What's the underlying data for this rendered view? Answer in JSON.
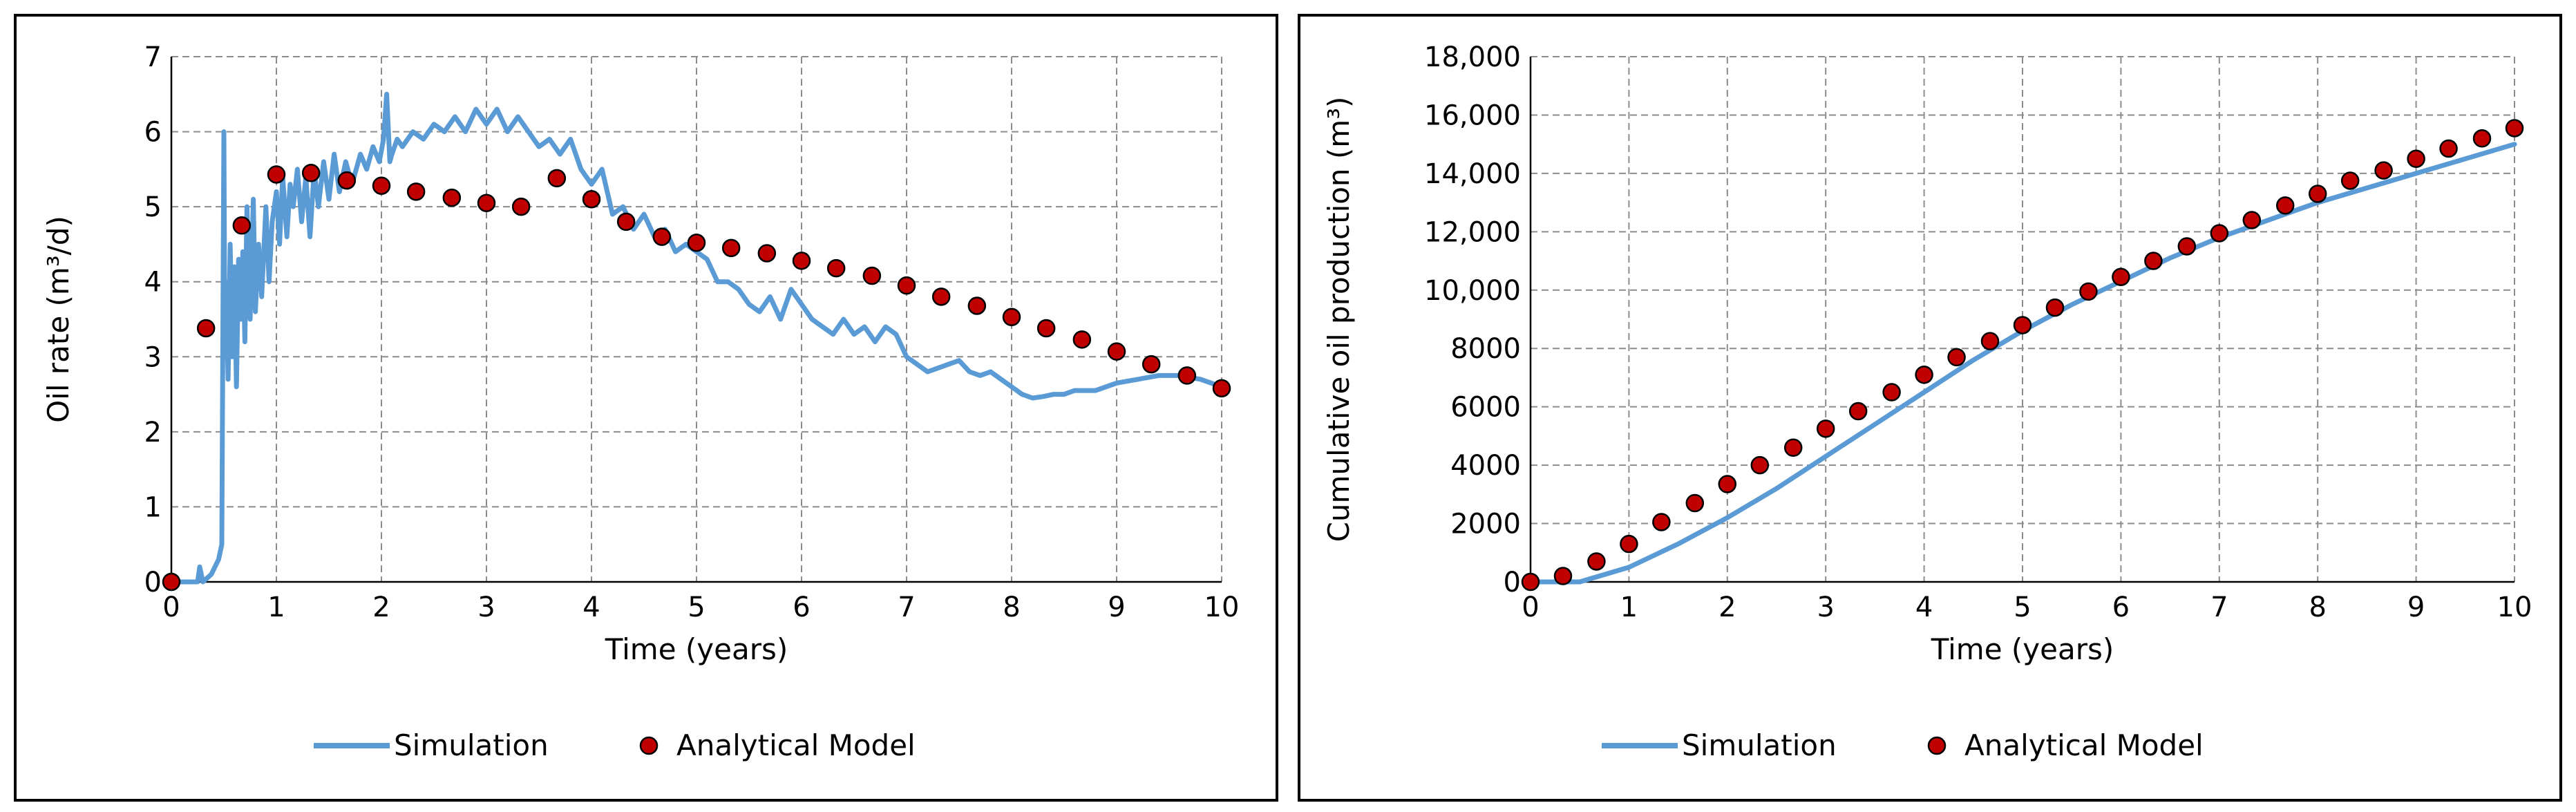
{
  "chart_data": [
    {
      "type": "line",
      "xlabel": "Time (years)",
      "ylabel": "Oil rate (m³/d)",
      "xlim": [
        0,
        10
      ],
      "ylim": [
        0,
        7
      ],
      "x_ticks": [
        "0",
        "1",
        "2",
        "3",
        "4",
        "5",
        "6",
        "7",
        "8",
        "9",
        "10"
      ],
      "y_ticks": [
        "0",
        "1",
        "2",
        "3",
        "4",
        "5",
        "6",
        "7"
      ],
      "grid": true,
      "legend_position": "bottom",
      "colors": {
        "simulation": "#5B9BD5",
        "analytical": "#C00000"
      },
      "series": [
        {
          "name": "Simulation",
          "style": "line",
          "x": [
            0,
            0.25,
            0.27,
            0.3,
            0.38,
            0.45,
            0.48,
            0.5,
            0.51,
            0.52,
            0.54,
            0.56,
            0.58,
            0.6,
            0.62,
            0.64,
            0.66,
            0.68,
            0.7,
            0.72,
            0.75,
            0.78,
            0.8,
            0.83,
            0.86,
            0.9,
            0.93,
            0.96,
            1.0,
            1.03,
            1.06,
            1.1,
            1.13,
            1.16,
            1.2,
            1.24,
            1.28,
            1.32,
            1.36,
            1.4,
            1.45,
            1.5,
            1.55,
            1.6,
            1.66,
            1.72,
            1.8,
            1.86,
            1.92,
            1.98,
            2.02,
            2.05,
            2.08,
            2.1,
            2.15,
            2.2,
            2.3,
            2.4,
            2.5,
            2.6,
            2.7,
            2.8,
            2.9,
            3.0,
            3.1,
            3.2,
            3.3,
            3.4,
            3.5,
            3.6,
            3.7,
            3.8,
            3.9,
            4.0,
            4.1,
            4.2,
            4.3,
            4.4,
            4.5,
            4.6,
            4.7,
            4.8,
            4.9,
            5.0,
            5.1,
            5.2,
            5.3,
            5.4,
            5.5,
            5.6,
            5.7,
            5.8,
            5.9,
            6.0,
            6.1,
            6.2,
            6.3,
            6.4,
            6.5,
            6.6,
            6.7,
            6.8,
            6.9,
            7.0,
            7.1,
            7.2,
            7.3,
            7.4,
            7.5,
            7.6,
            7.7,
            7.8,
            7.9,
            8.0,
            8.1,
            8.2,
            8.3,
            8.4,
            8.5,
            8.6,
            8.7,
            8.8,
            8.9,
            9.0,
            9.2,
            9.4,
            9.6,
            9.8,
            10.0
          ],
          "y": [
            0,
            0,
            0.2,
            0,
            0.1,
            0.3,
            0.5,
            6.0,
            3.0,
            4.0,
            2.7,
            4.5,
            3.0,
            4.2,
            2.6,
            4.3,
            3.5,
            4.4,
            3.2,
            5.0,
            3.5,
            5.1,
            3.6,
            4.5,
            3.8,
            5.0,
            4.0,
            4.8,
            5.2,
            4.5,
            5.4,
            4.6,
            5.3,
            5.0,
            5.5,
            4.8,
            5.4,
            4.6,
            5.5,
            5.0,
            5.6,
            5.1,
            5.7,
            5.2,
            5.6,
            5.3,
            5.7,
            5.5,
            5.8,
            5.6,
            5.9,
            6.5,
            5.6,
            5.7,
            5.9,
            5.8,
            6.0,
            5.9,
            6.1,
            6.0,
            6.2,
            6.0,
            6.3,
            6.1,
            6.3,
            6.0,
            6.2,
            6.0,
            5.8,
            5.9,
            5.7,
            5.9,
            5.5,
            5.3,
            5.5,
            4.9,
            5.0,
            4.7,
            4.9,
            4.6,
            4.7,
            4.4,
            4.5,
            4.4,
            4.3,
            4.0,
            4.0,
            3.9,
            3.7,
            3.6,
            3.8,
            3.5,
            3.9,
            3.7,
            3.5,
            3.4,
            3.3,
            3.5,
            3.3,
            3.4,
            3.2,
            3.4,
            3.3,
            3.0,
            2.9,
            2.8,
            2.85,
            2.9,
            2.95,
            2.8,
            2.75,
            2.8,
            2.7,
            2.6,
            2.5,
            2.45,
            2.47,
            2.5,
            2.5,
            2.55,
            2.55,
            2.55,
            2.6,
            2.65,
            2.7,
            2.75,
            2.75,
            2.7,
            2.6
          ]
        },
        {
          "name": "Analytical Model",
          "style": "markers",
          "x": [
            0,
            0.33,
            0.67,
            1.0,
            1.33,
            1.67,
            2.0,
            2.33,
            2.67,
            3.0,
            3.33,
            3.67,
            4.0,
            4.33,
            4.67,
            5.0,
            5.33,
            5.67,
            6.0,
            6.33,
            6.67,
            7.0,
            7.33,
            7.67,
            8.0,
            8.33,
            8.67,
            9.0,
            9.33,
            9.67,
            10.0
          ],
          "y": [
            0,
            3.38,
            4.75,
            5.43,
            5.45,
            5.35,
            5.28,
            5.2,
            5.12,
            5.05,
            5.0,
            5.38,
            5.1,
            4.8,
            4.6,
            4.52,
            4.45,
            4.38,
            4.28,
            4.18,
            4.08,
            3.95,
            3.8,
            3.68,
            3.53,
            3.38,
            3.23,
            3.07,
            2.9,
            2.75,
            2.58
          ]
        }
      ]
    },
    {
      "type": "line",
      "xlabel": "Time (years)",
      "ylabel": "Cumulative oil production (m³)",
      "xlim": [
        0,
        10
      ],
      "ylim": [
        0,
        18000
      ],
      "x_ticks": [
        "0",
        "1",
        "2",
        "3",
        "4",
        "5",
        "6",
        "7",
        "8",
        "9",
        "10"
      ],
      "y_ticks": [
        "0",
        "2000",
        "4000",
        "6000",
        "8000",
        "10,000",
        "12,000",
        "14,000",
        "16,000",
        "18,000"
      ],
      "grid": true,
      "legend_position": "bottom",
      "colors": {
        "simulation": "#5B9BD5",
        "analytical": "#C00000"
      },
      "series": [
        {
          "name": "Simulation",
          "style": "line",
          "x": [
            0,
            0.5,
            1.0,
            1.5,
            2.0,
            2.5,
            3.0,
            3.5,
            4.0,
            4.5,
            5.0,
            5.5,
            6.0,
            6.5,
            7.0,
            7.5,
            8.0,
            8.5,
            9.0,
            9.5,
            10.0
          ],
          "y": [
            0,
            0,
            500,
            1300,
            2200,
            3200,
            4300,
            5400,
            6500,
            7600,
            8600,
            9500,
            10300,
            11100,
            11800,
            12400,
            13000,
            13500,
            14000,
            14500,
            15000
          ]
        },
        {
          "name": "Analytical Model",
          "style": "markers",
          "x": [
            0,
            0.33,
            0.67,
            1.0,
            1.33,
            1.67,
            2.0,
            2.33,
            2.67,
            3.0,
            3.33,
            3.67,
            4.0,
            4.33,
            4.67,
            5.0,
            5.33,
            5.67,
            6.0,
            6.33,
            6.67,
            7.0,
            7.33,
            7.67,
            8.0,
            8.33,
            8.67,
            9.0,
            9.33,
            9.67,
            10.0
          ],
          "y": [
            0,
            200,
            700,
            1300,
            2050,
            2700,
            3350,
            4000,
            4600,
            5250,
            5850,
            6500,
            7100,
            7700,
            8250,
            8800,
            9400,
            9950,
            10450,
            11000,
            11500,
            11950,
            12400,
            12900,
            13300,
            13750,
            14100,
            14500,
            14850,
            15200,
            15550
          ]
        }
      ]
    }
  ]
}
